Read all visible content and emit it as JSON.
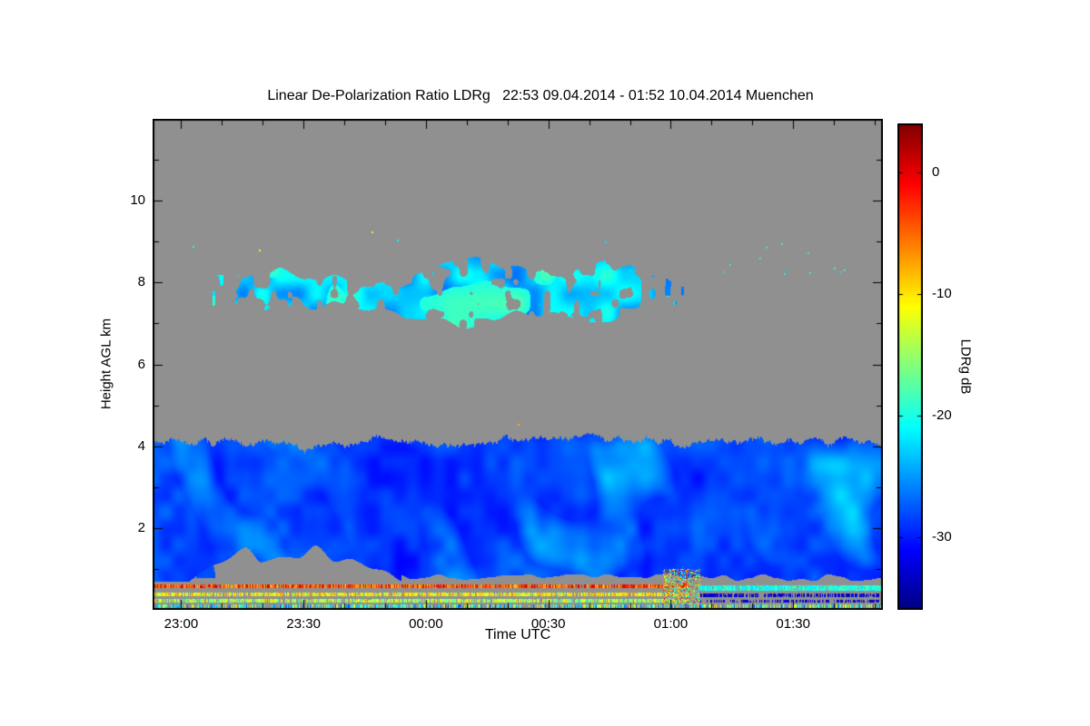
{
  "page": {
    "background": "#ffffff"
  },
  "chart_data": {
    "type": "heatmap",
    "title": "Linear De-Polarization Ratio LDRg   22:53 09.04.2014 - 01:52 10.04.2014 Muenchen",
    "xlabel": "Time UTC",
    "ylabel": "Height AGL km",
    "time_start_utc": "22:53",
    "time_end_utc": "01:52",
    "duration_min": 179,
    "ylim_km": [
      0,
      12
    ],
    "x_ticks": [
      {
        "label": "23:00",
        "min": 7
      },
      {
        "label": "23:30",
        "min": 37
      },
      {
        "label": "00:00",
        "min": 67
      },
      {
        "label": "00:30",
        "min": 97
      },
      {
        "label": "01:00",
        "min": 127
      },
      {
        "label": "01:30",
        "min": 157
      }
    ],
    "x_minor_step_min": 10,
    "y_ticks": [
      {
        "label": "2",
        "km": 2
      },
      {
        "label": "4",
        "km": 4
      },
      {
        "label": "6",
        "km": 6
      },
      {
        "label": "8",
        "km": 8
      },
      {
        "label": "10",
        "km": 10
      }
    ],
    "y_minor_step_km": 1,
    "colorbar": {
      "label": "LDRg dB",
      "range_db": [
        4,
        -36
      ],
      "ticks": [
        {
          "label": "0",
          "value": 0
        },
        {
          "label": "-10",
          "value": -10
        },
        {
          "label": "-20",
          "value": -20
        },
        {
          "label": "-30",
          "value": -30
        }
      ]
    },
    "no_data_color": "#909090",
    "frame_color": "#000000",
    "features": [
      {
        "kind": "layer",
        "name": "low-level-cloud-layer",
        "t_frac": [
          0,
          1
        ],
        "top_km": [
          3.8,
          4.35
        ],
        "bottom_km": 0.72,
        "gray_notch": {
          "t_frac": [
            0.05,
            0.34
          ],
          "max_top_km": 2.05
        },
        "ldr_db": {
          "base": -31,
          "spread": 5
        },
        "note": "dense deep-blue cloud/precip layer from ~0.7 km up to ~4 km, ragged top, gray notch below 2 km between ~23:05 and ~23:55"
      },
      {
        "kind": "layer_upper",
        "name": "cirrus-cloud-layer",
        "t_frac": [
          0.04,
          0.75
        ],
        "center_km": 7.8,
        "half_thick_km": [
          0.3,
          0.85
        ],
        "coverage": 0.8,
        "ldr_db": {
          "base": -27,
          "spread": 8
        },
        "note": "blue/cyan ice cloud band ~7.0-8.6 km from ~23:00 to ~01:10"
      },
      {
        "kind": "stripe",
        "name": "ground-clutter-red",
        "km": [
          0.55,
          0.63
        ],
        "t_frac": [
          0,
          0.735
        ],
        "coverage": 0.93,
        "ldr_db": {
          "base": -4,
          "spread": 5
        }
      },
      {
        "kind": "stripe",
        "name": "ground-clutter-yellow",
        "km": [
          0.35,
          0.42
        ],
        "t_frac": [
          0,
          0.735
        ],
        "coverage": 0.87,
        "ldr_db": {
          "base": -11,
          "spread": 4
        }
      },
      {
        "kind": "stripe",
        "name": "ground-clutter-green",
        "km": [
          0.21,
          0.27
        ],
        "t_frac": [
          0,
          0.735
        ],
        "coverage": 0.82,
        "ldr_db": {
          "base": -14,
          "spread": 5
        }
      },
      {
        "kind": "stripe",
        "name": "ground-clutter-mixed",
        "km": [
          0.07,
          0.13
        ],
        "t_frac": [
          0,
          1
        ],
        "coverage": 0.6,
        "ldr_db": {
          "base": -19,
          "spread": 10
        }
      },
      {
        "kind": "burst",
        "name": "clutter-burst-0100",
        "t_frac": [
          0.7,
          0.75
        ],
        "km": [
          0.15,
          1.0
        ],
        "coverage": 0.5,
        "ldr_db": {
          "base": -12,
          "spread": 13
        }
      },
      {
        "kind": "stripe",
        "name": "late-cyan-band",
        "km": [
          0.48,
          0.6
        ],
        "t_frac": [
          0.75,
          1
        ],
        "coverage": 0.96,
        "ldr_db": {
          "base": -20,
          "spread": 2
        }
      },
      {
        "kind": "stripe",
        "name": "late-navy-row-upper",
        "km": [
          0.34,
          0.4
        ],
        "t_frac": [
          0.75,
          1
        ],
        "coverage": 0.7,
        "ldr_db": {
          "base": -33,
          "spread": 2
        }
      },
      {
        "kind": "stripe",
        "name": "late-navy-row-lower",
        "km": [
          0.2,
          0.25
        ],
        "t_frac": [
          0.75,
          1
        ],
        "coverage": 0.5,
        "ldr_db": {
          "base": -33,
          "spread": 2
        }
      },
      {
        "kind": "specks",
        "name": "high-altitude-specks",
        "t_frac": [
          0.76,
          0.97
        ],
        "km": [
          8.2,
          9.0
        ],
        "density": 0.05,
        "ldr_db": {
          "base": -21,
          "spread": 3
        }
      }
    ],
    "dots": [
      {
        "t_frac": 0.055,
        "km": 8.9,
        "ldr_db": -20
      },
      {
        "t_frac": 0.145,
        "km": 8.8,
        "ldr_db": -12
      },
      {
        "t_frac": 0.3,
        "km": 9.25,
        "ldr_db": -13
      },
      {
        "t_frac": 0.335,
        "km": 9.05,
        "ldr_db": -21
      },
      {
        "t_frac": 0.5,
        "km": 4.55,
        "ldr_db": -8
      },
      {
        "t_frac": 0.62,
        "km": 9.0,
        "ldr_db": -22
      }
    ]
  }
}
